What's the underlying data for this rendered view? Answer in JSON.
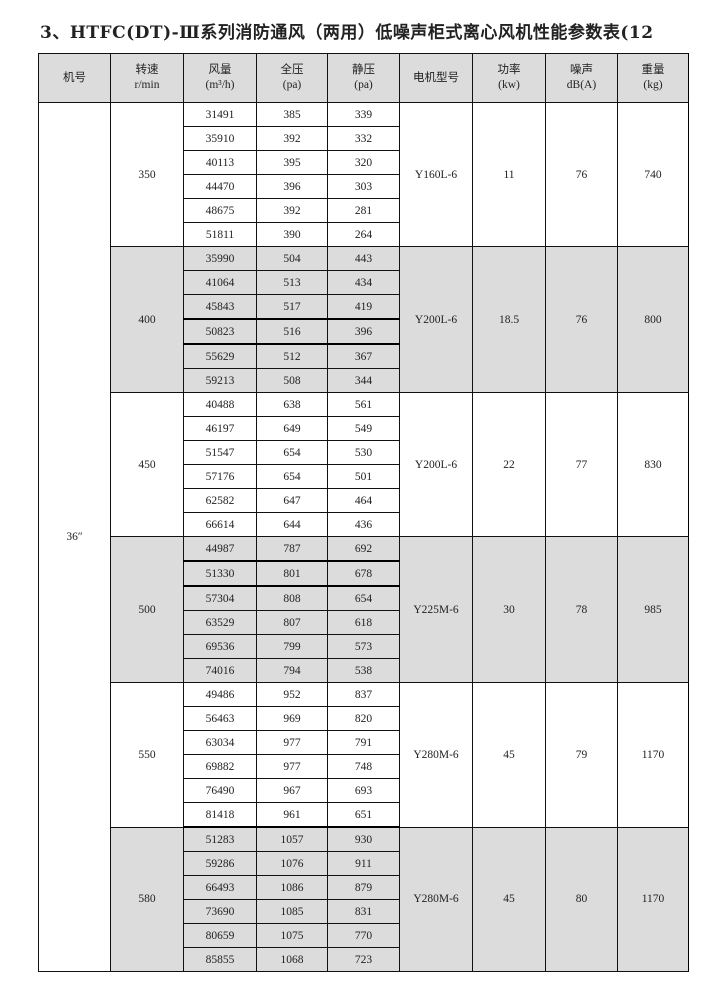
{
  "title": "3、HTFC(DT)-Ⅲ系列消防通风（两用）低噪声柜式离心风机性能参数表(12",
  "colors": {
    "header_bg": "#dcdcdc",
    "shaded_group_bg": "#dcdcdc",
    "border": "#111111"
  },
  "headers": [
    {
      "line1": "机号",
      "line2": ""
    },
    {
      "line1": "转速",
      "line2": "r/min"
    },
    {
      "line1": "风量",
      "line2": "(m³/h)"
    },
    {
      "line1": "全压",
      "line2": "(pa)"
    },
    {
      "line1": "静压",
      "line2": "(pa)"
    },
    {
      "line1": "电机型号",
      "line2": ""
    },
    {
      "line1": "功率",
      "line2": "(kw)"
    },
    {
      "line1": "噪声",
      "line2": "dB(A)"
    },
    {
      "line1": "重量",
      "line2": "(kg)"
    }
  ],
  "machine_no": "36″",
  "groups": [
    {
      "speed": "350",
      "motor": "Y160L-6",
      "power": "11",
      "noise": "76",
      "weight": "740",
      "shaded": false,
      "rows": [
        [
          "31491",
          "385",
          "339"
        ],
        [
          "35910",
          "392",
          "332"
        ],
        [
          "40113",
          "395",
          "320"
        ],
        [
          "44470",
          "396",
          "303"
        ],
        [
          "48675",
          "392",
          "281"
        ],
        [
          "51811",
          "390",
          "264"
        ]
      ]
    },
    {
      "speed": "400",
      "motor": "Y200L-6",
      "power": "18.5",
      "noise": "76",
      "weight": "800",
      "shaded": true,
      "rows": [
        [
          "35990",
          "504",
          "443"
        ],
        [
          "41064",
          "513",
          "434"
        ],
        [
          "45843",
          "517",
          "419"
        ],
        [
          "50823",
          "516",
          "396"
        ],
        [
          "55629",
          "512",
          "367"
        ],
        [
          "59213",
          "508",
          "344"
        ]
      ]
    },
    {
      "speed": "450",
      "motor": "Y200L-6",
      "power": "22",
      "noise": "77",
      "weight": "830",
      "shaded": false,
      "rows": [
        [
          "40488",
          "638",
          "561"
        ],
        [
          "46197",
          "649",
          "549"
        ],
        [
          "51547",
          "654",
          "530"
        ],
        [
          "57176",
          "654",
          "501"
        ],
        [
          "62582",
          "647",
          "464"
        ],
        [
          "66614",
          "644",
          "436"
        ]
      ]
    },
    {
      "speed": "500",
      "motor": "Y225M-6",
      "power": "30",
      "noise": "78",
      "weight": "985",
      "shaded": true,
      "rows": [
        [
          "44987",
          "787",
          "692"
        ],
        [
          "51330",
          "801",
          "678"
        ],
        [
          "57304",
          "808",
          "654"
        ],
        [
          "63529",
          "807",
          "618"
        ],
        [
          "69536",
          "799",
          "573"
        ],
        [
          "74016",
          "794",
          "538"
        ]
      ]
    },
    {
      "speed": "550",
      "motor": "Y280M-6",
      "power": "45",
      "noise": "79",
      "weight": "1170",
      "shaded": false,
      "rows": [
        [
          "49486",
          "952",
          "837"
        ],
        [
          "56463",
          "969",
          "820"
        ],
        [
          "63034",
          "977",
          "791"
        ],
        [
          "69882",
          "977",
          "748"
        ],
        [
          "76490",
          "967",
          "693"
        ],
        [
          "81418",
          "961",
          "651"
        ]
      ]
    },
    {
      "speed": "580",
      "motor": "Y280M-6",
      "power": "45",
      "noise": "80",
      "weight": "1170",
      "shaded": true,
      "rows": [
        [
          "51283",
          "1057",
          "930"
        ],
        [
          "59286",
          "1076",
          "911"
        ],
        [
          "66493",
          "1086",
          "879"
        ],
        [
          "73690",
          "1085",
          "831"
        ],
        [
          "80659",
          "1075",
          "770"
        ],
        [
          "85855",
          "1068",
          "723"
        ]
      ]
    }
  ]
}
